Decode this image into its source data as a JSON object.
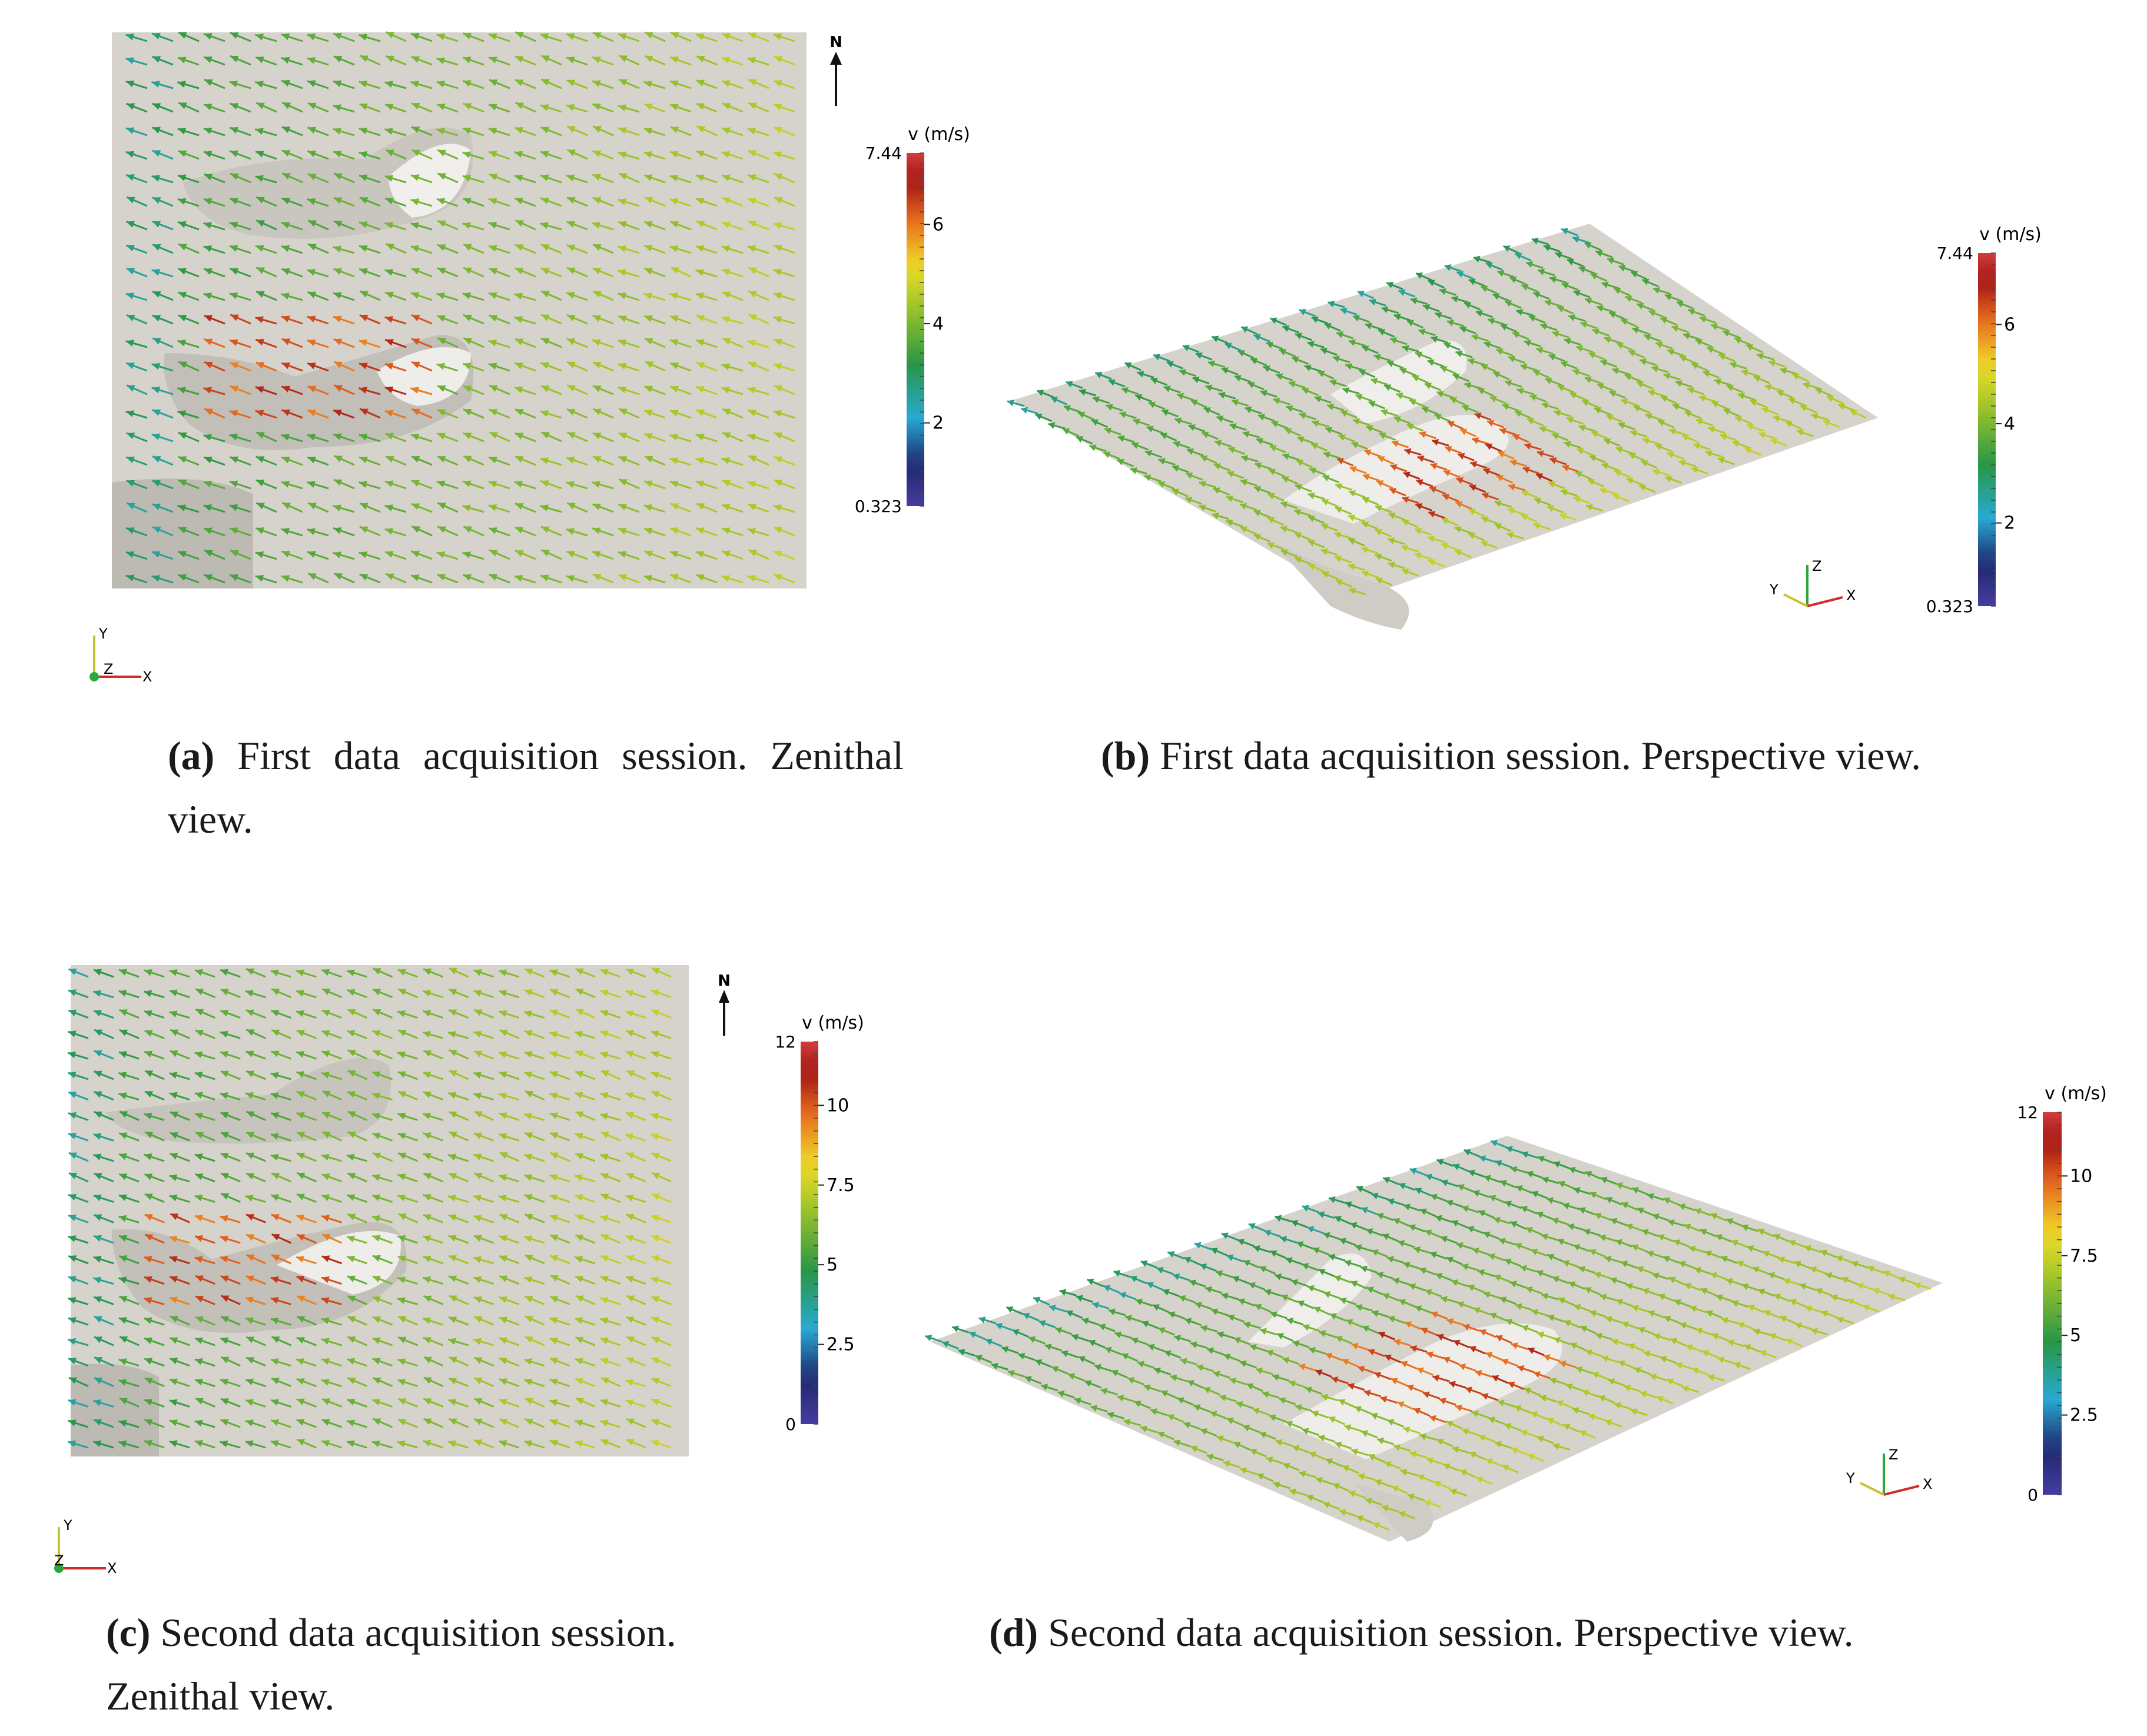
{
  "panels": {
    "a": {
      "tag": "(a)",
      "caption": "First data acquisition session. Zenithal view.",
      "colorbar": {
        "title": "v (m/s)",
        "min": 0.323,
        "max": 7.44,
        "ticks": [
          {
            "v": "2",
            "n": 2
          },
          {
            "v": "4",
            "n": 4
          },
          {
            "v": "6",
            "n": 6
          }
        ],
        "min_label": "0.323",
        "max_label": "7.44"
      },
      "north_label": "N",
      "axes": {
        "x": "X",
        "y": "Y",
        "z": "Z"
      }
    },
    "b": {
      "tag": "(b)",
      "caption": "First data acquisition session. Perspective view.",
      "colorbar": {
        "title": "v (m/s)",
        "min": 0.323,
        "max": 7.44,
        "ticks": [
          {
            "v": "2",
            "n": 2
          },
          {
            "v": "4",
            "n": 4
          },
          {
            "v": "6",
            "n": 6
          }
        ],
        "min_label": "0.323",
        "max_label": "7.44"
      },
      "axes": {
        "x": "X",
        "y": "Y",
        "z": "Z"
      }
    },
    "c": {
      "tag": "(c)",
      "caption": "Second data acquisition session. Zenithal view.",
      "colorbar": {
        "title": "v (m/s)",
        "min": 0,
        "max": 12,
        "ticks": [
          {
            "v": "2.5",
            "n": 2.5
          },
          {
            "v": "5",
            "n": 5
          },
          {
            "v": "7.5",
            "n": 7.5
          },
          {
            "v": "10",
            "n": 10
          }
        ],
        "min_label": "0",
        "max_label": "12"
      },
      "north_label": "N",
      "axes": {
        "x": "X",
        "y": "Y",
        "z": "Z"
      }
    },
    "d": {
      "tag": "(d)",
      "caption": "Second data acquisition session. Perspective view.",
      "colorbar": {
        "title": "v (m/s)",
        "min": 0,
        "max": 12,
        "ticks": [
          {
            "v": "2.5",
            "n": 2.5
          },
          {
            "v": "5",
            "n": 5
          },
          {
            "v": "7.5",
            "n": 7.5
          },
          {
            "v": "10",
            "n": 10
          }
        ],
        "min_label": "0",
        "max_label": "12"
      },
      "axes": {
        "x": "X",
        "y": "Y",
        "z": "Z"
      }
    }
  },
  "colors": {
    "terrain": "#d6d3cc",
    "ridge": "#f2f1ee",
    "shadow": "#b9b7b2",
    "arrow_low": "#2c8a3f",
    "arrow_mid": "#a8b83a",
    "arrow_high": "#c8351f",
    "axis_x": "#d42a2a",
    "axis_y": "#c8c22a",
    "axis_z": "#2aa83a"
  }
}
